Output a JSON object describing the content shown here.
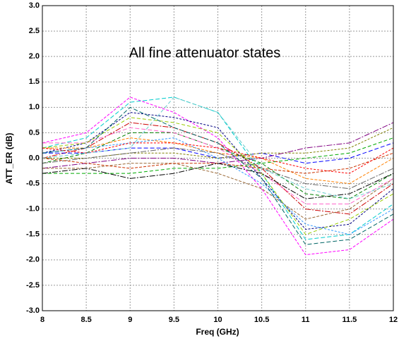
{
  "chart_data": {
    "type": "line",
    "annotation": "All fine attenuator states",
    "x_label": "Freq (GHz)",
    "y_label": "ATT_ER (dB)",
    "x": [
      8,
      8.5,
      9,
      9.5,
      10,
      10.5,
      11,
      11.5,
      12
    ],
    "xlim": [
      8,
      12
    ],
    "xticks": [
      8,
      8.5,
      9,
      9.5,
      10,
      10.5,
      11,
      11.5,
      12
    ],
    "ylim": [
      -3,
      3
    ],
    "yticks": [
      {
        "value": -3,
        "label": "-3.0"
      },
      {
        "value": -2.5,
        "label": "-2.5"
      },
      {
        "value": -2,
        "label": "-2.0"
      },
      {
        "value": -1.5,
        "label": "-1.5"
      },
      {
        "value": -1,
        "label": "-1.0"
      },
      {
        "value": -0.5,
        "label": "-0.5"
      },
      {
        "value": 0,
        "label": "0.0"
      },
      {
        "value": 0.5,
        "label": "0.5"
      },
      {
        "value": 1,
        "label": "1.0"
      },
      {
        "value": 1.5,
        "label": "1.5"
      },
      {
        "value": 2,
        "label": "2.0"
      },
      {
        "value": 2.5,
        "label": "2.5"
      },
      {
        "value": 3,
        "label": "3.0"
      }
    ],
    "grid": true,
    "series": [
      {
        "color": "#ff00ff",
        "values": [
          0.3,
          0.5,
          1.2,
          0.9,
          0.4,
          -0.6,
          -1.9,
          -1.8,
          -1.2
        ]
      },
      {
        "color": "#00cccc",
        "values": [
          0.2,
          0.4,
          1.1,
          1.2,
          0.9,
          -0.3,
          -1.6,
          -1.5,
          -0.9
        ]
      },
      {
        "color": "#000080",
        "values": [
          0.1,
          0.3,
          0.9,
          0.8,
          0.6,
          -0.4,
          -1.4,
          -1.3,
          -0.6
        ]
      },
      {
        "color": "#cc0000",
        "values": [
          0.0,
          0.2,
          0.7,
          0.6,
          0.3,
          -0.2,
          -1.0,
          -1.1,
          -0.5
        ]
      },
      {
        "color": "#008000",
        "values": [
          -0.1,
          0.1,
          0.5,
          0.5,
          0.2,
          -0.1,
          -0.7,
          -0.8,
          -0.3
        ]
      },
      {
        "color": "#ff8000",
        "values": [
          0.2,
          0.2,
          0.4,
          0.3,
          0.1,
          0.0,
          -0.4,
          -0.5,
          0.0
        ]
      },
      {
        "color": "#0000ff",
        "values": [
          0.1,
          0.1,
          0.2,
          0.2,
          0.0,
          0.1,
          -0.1,
          0.0,
          0.3
        ]
      },
      {
        "color": "#808000",
        "values": [
          0.0,
          0.0,
          0.1,
          0.1,
          0.0,
          0.1,
          0.1,
          0.2,
          0.6
        ]
      },
      {
        "color": "#800080",
        "values": [
          -0.2,
          -0.1,
          0.0,
          0.0,
          -0.1,
          0.0,
          0.2,
          0.3,
          0.7
        ]
      },
      {
        "color": "#00aa00",
        "values": [
          -0.3,
          -0.3,
          -0.3,
          -0.2,
          -0.2,
          -0.1,
          0.0,
          0.1,
          0.4
        ]
      },
      {
        "color": "#996633",
        "values": [
          -0.2,
          -0.2,
          -0.1,
          -0.1,
          -0.3,
          -0.6,
          -1.2,
          -1.0,
          -0.4
        ]
      },
      {
        "color": "#ff66cc",
        "values": [
          0.3,
          0.3,
          0.6,
          0.5,
          0.2,
          -0.3,
          -0.9,
          -0.9,
          -0.4
        ]
      },
      {
        "color": "#3399ff",
        "values": [
          0.1,
          0.2,
          0.3,
          0.4,
          0.0,
          -0.5,
          -1.3,
          -1.5,
          -1.0
        ]
      },
      {
        "color": "#666666",
        "values": [
          -0.1,
          0.0,
          0.1,
          0.2,
          0.1,
          -0.2,
          -0.5,
          -0.6,
          -0.2
        ]
      },
      {
        "color": "#99cc00",
        "values": [
          0.2,
          0.3,
          0.8,
          0.7,
          0.5,
          -0.3,
          -1.5,
          -1.2,
          -0.7
        ]
      },
      {
        "color": "#cc3300",
        "values": [
          0.0,
          -0.1,
          -0.2,
          -0.1,
          -0.1,
          -0.2,
          -0.3,
          -0.2,
          0.1
        ]
      },
      {
        "color": "#006666",
        "values": [
          0.1,
          0.2,
          1.0,
          0.6,
          0.3,
          -0.4,
          -1.7,
          -1.6,
          -1.1
        ]
      },
      {
        "color": "#ff0000",
        "values": [
          0.2,
          0.1,
          0.3,
          0.3,
          0.2,
          0.0,
          -0.2,
          -0.3,
          0.2
        ]
      },
      {
        "color": "#000000",
        "values": [
          -0.3,
          -0.2,
          -0.4,
          -0.3,
          -0.1,
          -0.3,
          -0.8,
          -0.7,
          -0.3
        ]
      },
      {
        "color": "#66cccc",
        "values": [
          0.0,
          0.1,
          0.2,
          1.2,
          0.9,
          -0.2,
          -0.6,
          -0.8,
          -0.5
        ]
      }
    ]
  }
}
